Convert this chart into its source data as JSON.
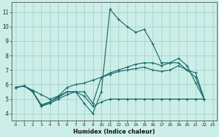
{
  "xlabel": "Humidex (Indice chaleur)",
  "bg_color": "#cceee8",
  "grid_color": "#aad4ce",
  "line_color": "#1a6b6b",
  "x_ticks": [
    0,
    1,
    2,
    3,
    4,
    5,
    6,
    7,
    8,
    9,
    10,
    11,
    12,
    13,
    14,
    15,
    16,
    17,
    18,
    19,
    20,
    21,
    22,
    23
  ],
  "y_ticks": [
    4,
    5,
    6,
    7,
    8,
    9,
    10,
    11
  ],
  "ylim": [
    3.5,
    11.7
  ],
  "xlim": [
    -0.5,
    23.5
  ],
  "line1_x": [
    0,
    1,
    2,
    3,
    4,
    5,
    6,
    7,
    8,
    9,
    10,
    11,
    12,
    13,
    14,
    15,
    16,
    17,
    18,
    19,
    20,
    21,
    22
  ],
  "line1_y": [
    5.8,
    5.9,
    5.5,
    4.5,
    4.8,
    5.1,
    5.5,
    5.5,
    4.7,
    4.0,
    5.5,
    11.2,
    10.5,
    10.0,
    9.6,
    9.8,
    8.8,
    7.5,
    7.5,
    7.8,
    7.3,
    6.1,
    5.0
  ],
  "line2_x": [
    0,
    1,
    2,
    3,
    4,
    5,
    6,
    7,
    8,
    9,
    10,
    11,
    12,
    13,
    14,
    15,
    16,
    17,
    18,
    19,
    20,
    21,
    22
  ],
  "line2_y": [
    5.8,
    5.9,
    5.5,
    4.6,
    4.8,
    5.2,
    5.5,
    5.5,
    5.5,
    4.7,
    6.5,
    6.8,
    7.0,
    7.2,
    7.4,
    7.5,
    7.5,
    7.3,
    7.5,
    7.5,
    7.0,
    6.8,
    5.0
  ],
  "line3_x": [
    0,
    1,
    2,
    3,
    4,
    5,
    6,
    7,
    8,
    9,
    10,
    11,
    12,
    13,
    14,
    15,
    16,
    17,
    18,
    19,
    20,
    21,
    22
  ],
  "line3_y": [
    5.8,
    5.9,
    5.6,
    5.3,
    5.0,
    5.2,
    5.8,
    6.0,
    6.1,
    6.3,
    6.5,
    6.7,
    6.9,
    7.0,
    7.1,
    7.2,
    7.0,
    6.9,
    7.0,
    7.3,
    7.0,
    6.5,
    5.0
  ],
  "line4_x": [
    0,
    1,
    2,
    3,
    4,
    5,
    6,
    7,
    8,
    9,
    10,
    11,
    12,
    13,
    14,
    15,
    16,
    17,
    18,
    19,
    20,
    21,
    22
  ],
  "line4_y": [
    5.8,
    5.9,
    5.5,
    4.5,
    4.7,
    5.0,
    5.3,
    5.5,
    5.2,
    4.5,
    4.8,
    5.0,
    5.0,
    5.0,
    5.0,
    5.0,
    5.0,
    5.0,
    5.0,
    5.0,
    5.0,
    5.0,
    5.0
  ]
}
